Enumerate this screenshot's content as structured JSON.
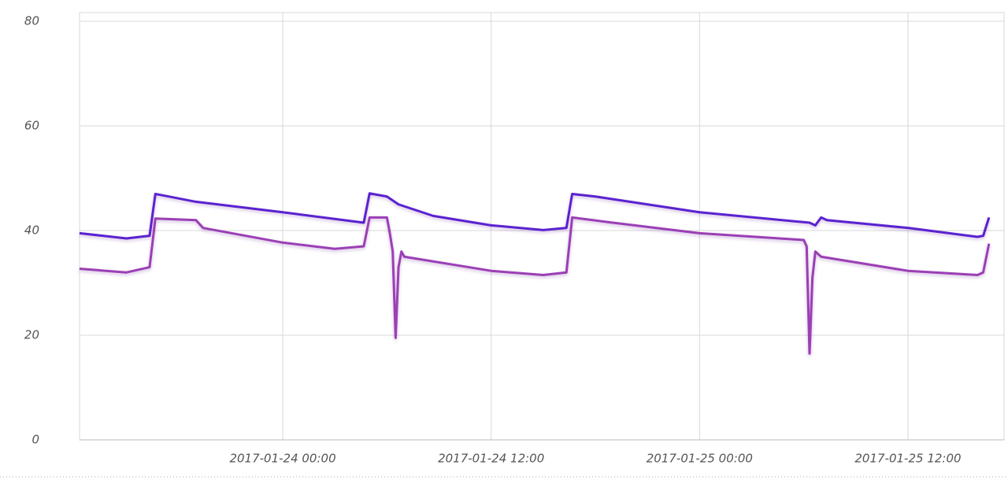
{
  "chart_data": {
    "type": "line",
    "xlim": [
      "2017-01-23 12:18",
      "2017-01-25 17:32"
    ],
    "xticks": [
      "2017-01-24 00:00",
      "2017-01-24 12:00",
      "2017-01-25 00:00",
      "2017-01-25 12:00"
    ],
    "ylim": [
      0,
      80
    ],
    "yticks": [
      0,
      20,
      40,
      60,
      80
    ],
    "grid": true,
    "series": [
      {
        "color": "#5a22d0",
        "x": [
          "2017-01-23 12:18",
          "2017-01-23 15:00",
          "2017-01-23 16:20",
          "2017-01-23 16:40",
          "2017-01-23 19:00",
          "2017-01-24 00:00",
          "2017-01-24 04:40",
          "2017-01-24 05:00",
          "2017-01-24 06:00",
          "2017-01-24 06:40",
          "2017-01-24 08:40",
          "2017-01-24 12:00",
          "2017-01-24 15:00",
          "2017-01-24 16:20",
          "2017-01-24 16:40",
          "2017-01-24 18:00",
          "2017-01-25 00:00",
          "2017-01-25 06:20",
          "2017-01-25 06:40",
          "2017-01-25 07:00",
          "2017-01-25 07:20",
          "2017-01-25 12:00",
          "2017-01-25 16:00",
          "2017-01-25 16:20",
          "2017-01-25 16:40"
        ],
        "values": [
          39.5,
          38.5,
          39,
          47,
          45.5,
          43.5,
          41.5,
          47.1,
          46.5,
          45,
          42.8,
          41,
          40.1,
          40.5,
          47,
          46.5,
          43.5,
          41.5,
          41,
          42.5,
          42,
          40.5,
          38.8,
          39,
          42.5
        ]
      },
      {
        "color": "#9b3fb5",
        "x": [
          "2017-01-23 12:18",
          "2017-01-23 15:00",
          "2017-01-23 16:20",
          "2017-01-23 16:40",
          "2017-01-23 19:00",
          "2017-01-23 19:25",
          "2017-01-24 00:00",
          "2017-01-24 03:00",
          "2017-01-24 04:40",
          "2017-01-24 05:00",
          "2017-01-24 06:00",
          "2017-01-24 06:10",
          "2017-01-24 06:20",
          "2017-01-24 06:30",
          "2017-01-24 06:40",
          "2017-01-24 06:50",
          "2017-01-24 07:00",
          "2017-01-24 12:00",
          "2017-01-24 15:00",
          "2017-01-24 16:20",
          "2017-01-24 16:40",
          "2017-01-24 19:00",
          "2017-01-25 00:00",
          "2017-01-25 06:00",
          "2017-01-25 06:10",
          "2017-01-25 06:20",
          "2017-01-25 06:30",
          "2017-01-25 06:40",
          "2017-01-25 07:00",
          "2017-01-25 12:00",
          "2017-01-25 16:00",
          "2017-01-25 16:20",
          "2017-01-25 16:40"
        ],
        "values": [
          32.7,
          32,
          33,
          42.3,
          42,
          40.5,
          37.7,
          36.5,
          37,
          42.5,
          42.5,
          39.5,
          36,
          19.5,
          33,
          36,
          35,
          32.3,
          31.5,
          32,
          42.5,
          41.5,
          39.5,
          38.2,
          37,
          16.5,
          31,
          36,
          35,
          32.3,
          31.5,
          32,
          37.5
        ]
      }
    ]
  }
}
